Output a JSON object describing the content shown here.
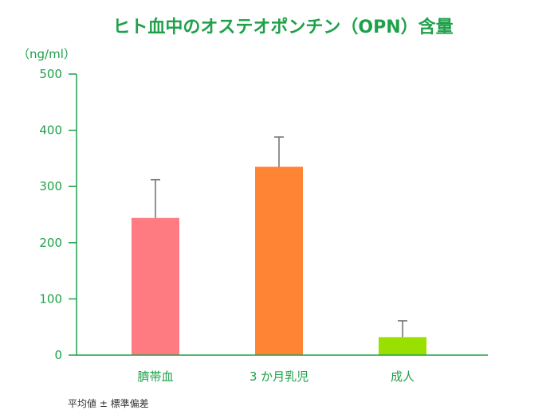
{
  "chart_data": {
    "type": "bar",
    "title": "ヒト血中のオステオポンチン（OPN）含量",
    "ylabel": "（ng/ml）",
    "xlabel": "",
    "categories": [
      "臍帯血",
      "3 か月乳児",
      "成人"
    ],
    "values": [
      244,
      335,
      32
    ],
    "errors": [
      68,
      53,
      29
    ],
    "colors": [
      "#ff7b82",
      "#ff8433",
      "#99e000"
    ],
    "ylim": [
      0,
      500
    ],
    "yticks": [
      0,
      100,
      200,
      300,
      400,
      500
    ],
    "grid": false,
    "footnote": "平均値 ± 標準偏差",
    "axis_color": "#1fa04a",
    "error_bar_color": "#777777"
  }
}
